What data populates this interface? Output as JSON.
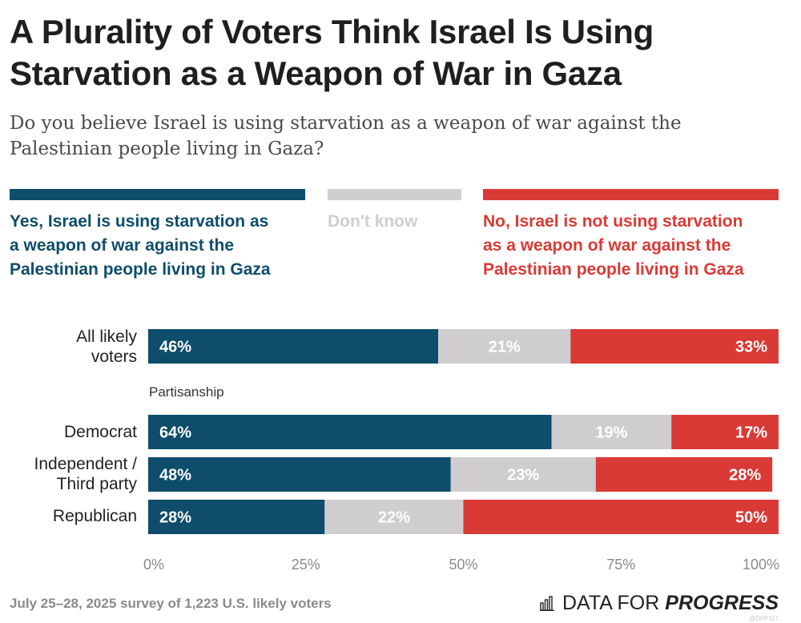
{
  "title_lines": [
    "A Plurality of Voters Think Israel Is Using",
    "Starvation as a Weapon of War in Gaza"
  ],
  "subtitle_lines": [
    "Do you believe Israel is using starvation as a weapon of war against the",
    "Palestinian people living in Gaza?"
  ],
  "legend": [
    {
      "color": "#0e4d6b",
      "lines": [
        "Yes, Israel is using starvation as",
        "a weapon of war against the",
        "Palestinian people living in Gaza"
      ]
    },
    {
      "color": "#cfcdd0",
      "lines": [
        "Don't know"
      ]
    },
    {
      "color": "#d93a35",
      "lines": [
        "No, Israel is not using starvation",
        "as a weapon of war against the",
        "Palestinian people living in Gaza"
      ]
    }
  ],
  "row_labels": [
    [
      "All likely",
      "voters"
    ],
    [
      "Democrat"
    ],
    [
      "Independent /",
      "Third party"
    ],
    [
      "Republican"
    ]
  ],
  "section_label": "Partisanship",
  "footer": "July 25–28, 2025 survey of 1,223 U.S. likely voters",
  "brand": {
    "prefix": "DATA FOR",
    "strong": "PROGRESS"
  },
  "credit": "@DFP117",
  "chart_data": {
    "type": "bar",
    "orientation": "horizontal",
    "stacked": true,
    "categories": [
      "All likely voters",
      "Democrat",
      "Independent / Third party",
      "Republican"
    ],
    "series": [
      {
        "name": "Yes, Israel is using starvation as a weapon of war against the Palestinian people living in Gaza",
        "color": "#0e4d6b",
        "values": [
          46,
          64,
          48,
          28
        ],
        "labels": [
          "46%",
          "64%",
          "48%",
          "28%"
        ]
      },
      {
        "name": "Don't know",
        "color": "#cfcdd0",
        "values": [
          21,
          19,
          23,
          22
        ],
        "labels": [
          "21%",
          "19%",
          "23%",
          "22%"
        ]
      },
      {
        "name": "No, Israel is not using starvation as a weapon of war against the Palestinian people living in Gaza",
        "color": "#d93a35",
        "values": [
          33,
          17,
          28,
          50
        ],
        "labels": [
          "33%",
          "17%",
          "28%",
          "50%"
        ]
      }
    ],
    "xlim": [
      0,
      100
    ],
    "x_ticks": [
      0,
      25,
      50,
      75,
      100
    ],
    "x_tick_labels": [
      "0%",
      "25%",
      "50%",
      "75%",
      "100%"
    ]
  }
}
